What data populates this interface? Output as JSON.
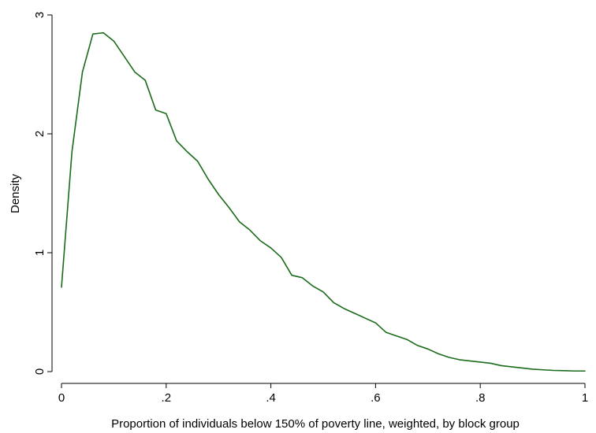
{
  "chart_data": {
    "type": "line",
    "title": "",
    "xlabel": "Proportion of individuals below 150% of poverty line, weighted, by block group",
    "ylabel": "Density",
    "xlim": [
      0,
      1
    ],
    "ylim": [
      0,
      3
    ],
    "x_ticks": [
      {
        "value": 0,
        "label": "0"
      },
      {
        "value": 0.2,
        "label": ".2"
      },
      {
        "value": 0.4,
        "label": ".4"
      },
      {
        "value": 0.6,
        "label": ".6"
      },
      {
        "value": 0.8,
        "label": ".8"
      },
      {
        "value": 1,
        "label": "1"
      }
    ],
    "y_ticks": [
      {
        "value": 0,
        "label": "0"
      },
      {
        "value": 1,
        "label": "1"
      },
      {
        "value": 2,
        "label": "2"
      },
      {
        "value": 3,
        "label": "3"
      }
    ],
    "grid": false,
    "legend": "none",
    "series": [
      {
        "color": "#1a6b1a",
        "x": [
          0,
          0.02,
          0.04,
          0.06,
          0.08,
          0.1,
          0.12,
          0.14,
          0.16,
          0.18,
          0.2,
          0.22,
          0.24,
          0.26,
          0.28,
          0.3,
          0.32,
          0.34,
          0.36,
          0.38,
          0.4,
          0.42,
          0.44,
          0.46,
          0.48,
          0.5,
          0.52,
          0.54,
          0.56,
          0.58,
          0.6,
          0.62,
          0.64,
          0.66,
          0.68,
          0.7,
          0.72,
          0.74,
          0.76,
          0.78,
          0.8,
          0.82,
          0.84,
          0.86,
          0.88,
          0.9,
          0.92,
          0.94,
          0.96,
          0.98,
          1.0
        ],
        "y": [
          0.71,
          1.85,
          2.52,
          2.84,
          2.85,
          2.78,
          2.65,
          2.52,
          2.45,
          2.2,
          2.17,
          1.94,
          1.85,
          1.77,
          1.62,
          1.49,
          1.38,
          1.26,
          1.19,
          1.1,
          1.04,
          0.96,
          0.81,
          0.79,
          0.72,
          0.67,
          0.58,
          0.53,
          0.49,
          0.45,
          0.41,
          0.33,
          0.3,
          0.27,
          0.22,
          0.19,
          0.15,
          0.12,
          0.1,
          0.09,
          0.08,
          0.07,
          0.05,
          0.04,
          0.03,
          0.02,
          0.015,
          0.01,
          0.008,
          0.005,
          0.005
        ]
      }
    ]
  }
}
